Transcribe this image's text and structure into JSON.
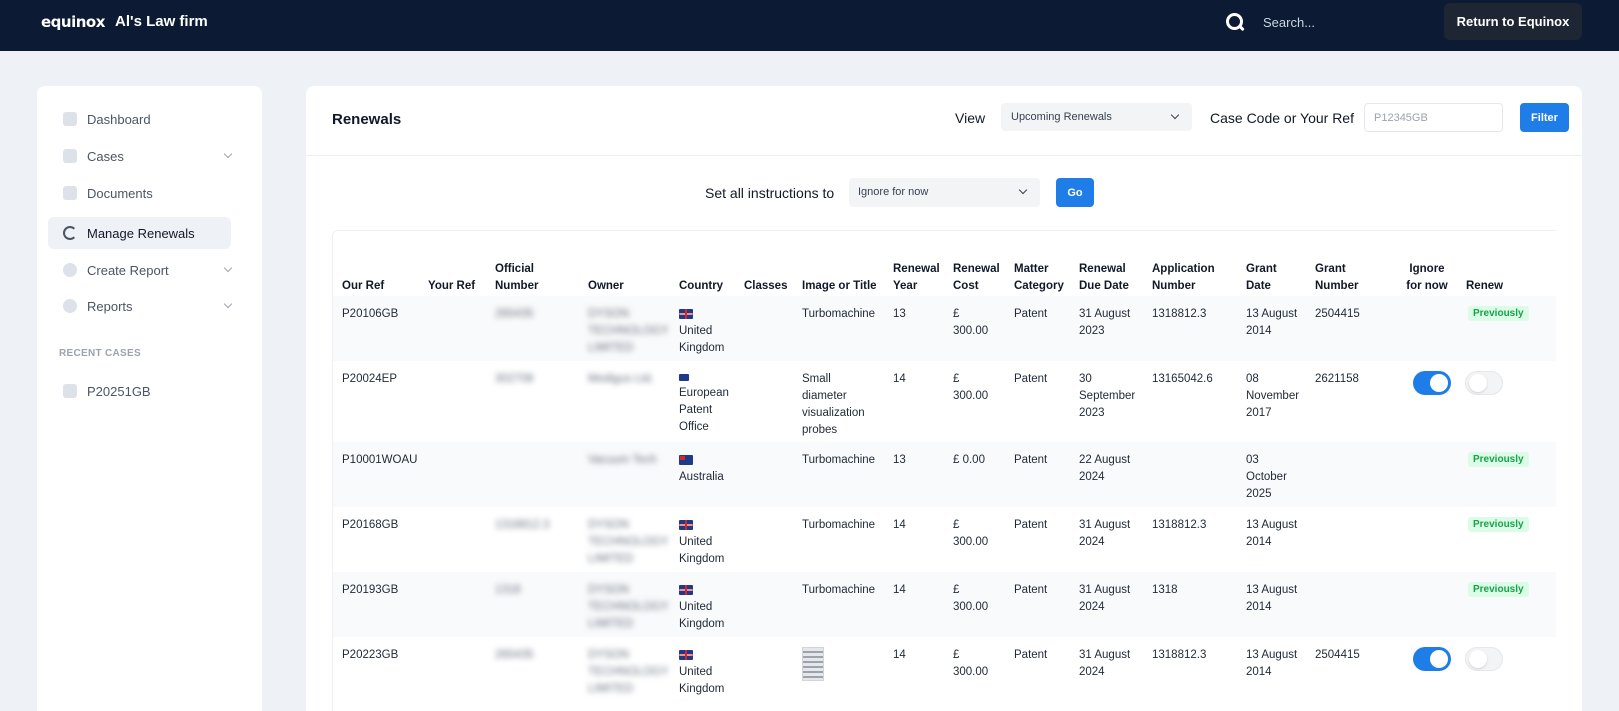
{
  "topbar": {
    "logo": "equinox",
    "firm_name": "Al's Law firm",
    "search_placeholder": "Search...",
    "return_label": "Return to Equinox"
  },
  "sidebar": {
    "items": [
      {
        "label": "Dashboard",
        "icon": "dashboard-icon"
      },
      {
        "label": "Cases",
        "icon": "cases-icon"
      },
      {
        "label": "Documents",
        "icon": "documents-icon"
      },
      {
        "label": "Manage Renewals",
        "icon": "refresh-icon",
        "active": true
      },
      {
        "label": "Create Report",
        "icon": "plus-circle-icon"
      },
      {
        "label": "Reports",
        "icon": "pie-chart-icon"
      }
    ],
    "recent_heading": "RECENT CASES",
    "recent": [
      {
        "label": "P20251GB"
      }
    ]
  },
  "main": {
    "title": "Renewals",
    "view_label": "View",
    "view_value": "Upcoming Renewals",
    "ref_label": "Case Code or Your Ref",
    "ref_placeholder": "P12345GB",
    "filter_label": "Filter",
    "setall_label": "Set all instructions to",
    "setall_value": "Ignore for now",
    "go_label": "Go"
  },
  "table": {
    "headers": {
      "our_ref": "Our Ref",
      "your_ref": "Your Ref",
      "official_1": "Official",
      "official_2": "Number",
      "owner": "Owner",
      "country": "Country",
      "classes": "Classes",
      "image": "Image or Title",
      "renewal_year_1": "Renewal",
      "renewal_year_2": "Year",
      "renewal_cost_1": "Renewal",
      "renewal_cost_2": "Cost",
      "matter_1": "Matter",
      "matter_2": "Category",
      "due_1": "Renewal",
      "due_2": "Due Date",
      "app_1": "Application",
      "app_2": "Number",
      "grant_date_1": "Grant",
      "grant_date_2": "Date",
      "grant_num_1": "Grant",
      "grant_num_2": "Number",
      "ignore_1": "Ignore",
      "ignore_2": "for now",
      "renew": "Renew"
    },
    "rows": [
      {
        "our_ref": "P20106GB",
        "official": [
          "265435"
        ],
        "owner": [
          "DYSON",
          "TECHNOLOGY",
          "LIMITED"
        ],
        "country": [
          "United",
          "Kingdom"
        ],
        "flag": "uk",
        "title": [
          "Turbomachine"
        ],
        "year": "13",
        "cost": [
          "£",
          "300.00"
        ],
        "matter": "Patent",
        "due": [
          "31 August",
          "2023"
        ],
        "app": "1318812.3",
        "grant_date": [
          "13 August",
          "2014"
        ],
        "grant_num": "2504415",
        "status": "Previously"
      },
      {
        "our_ref": "P20024EP",
        "official": [
          "302708"
        ],
        "owner": [
          "Medigus Ltd."
        ],
        "country": [
          "European",
          "Patent",
          "Office"
        ],
        "flag": "eu",
        "title": [
          "Small",
          "diameter",
          "visualization",
          "probes"
        ],
        "year": "14",
        "cost": [
          "£",
          "300.00"
        ],
        "matter": "Patent",
        "due": [
          "30",
          "September",
          "2023"
        ],
        "app": "13165042.6",
        "grant_date": [
          "08",
          "November",
          "2017"
        ],
        "grant_num": "2621158",
        "ignore": true,
        "renew": false
      },
      {
        "our_ref": "P10001WOAU",
        "official": [
          ""
        ],
        "owner": [
          "Vacuum Tech"
        ],
        "country": [
          "Australia"
        ],
        "flag": "au",
        "title": [
          "Turbomachine"
        ],
        "year": "13",
        "cost": [
          "£ 0.00"
        ],
        "matter": "Patent",
        "due": [
          "22 August",
          "2024"
        ],
        "app": "",
        "grant_date": [
          "03",
          "October",
          "2025"
        ],
        "grant_num": "",
        "status": "Previously"
      },
      {
        "our_ref": "P20168GB",
        "official": [
          "1318812.3"
        ],
        "owner": [
          "DYSON",
          "TECHNOLOGY",
          "LIMITED"
        ],
        "country": [
          "United",
          "Kingdom"
        ],
        "flag": "uk",
        "title": [
          "Turbomachine"
        ],
        "year": "14",
        "cost": [
          "£",
          "300.00"
        ],
        "matter": "Patent",
        "due": [
          "31 August",
          "2024"
        ],
        "app": "1318812.3",
        "grant_date": [
          "13 August",
          "2014"
        ],
        "grant_num": "",
        "status": "Previously"
      },
      {
        "our_ref": "P20193GB",
        "official": [
          "1318"
        ],
        "owner": [
          "DYSON",
          "TECHNOLOGY",
          "LIMITED"
        ],
        "country": [
          "United",
          "Kingdom"
        ],
        "flag": "uk",
        "title": [
          "Turbomachine"
        ],
        "year": "14",
        "cost": [
          "£",
          "300.00"
        ],
        "matter": "Patent",
        "due": [
          "31 August",
          "2024"
        ],
        "app": "1318",
        "grant_date": [
          "13 August",
          "2014"
        ],
        "grant_num": "",
        "status": "Previously"
      },
      {
        "our_ref": "P20223GB",
        "official": [
          "265435"
        ],
        "owner": [
          "DYSON",
          "TECHNOLOGY",
          "LIMITED"
        ],
        "country": [
          "United",
          "Kingdom"
        ],
        "flag": "uk",
        "title": [],
        "thumbnail": true,
        "year": "14",
        "cost": [
          "£",
          "300.00"
        ],
        "matter": "Patent",
        "due": [
          "31 August",
          "2024"
        ],
        "app": "1318812.3",
        "grant_date": [
          "13 August",
          "2014"
        ],
        "grant_num": "2504415",
        "ignore": true,
        "renew": false
      }
    ]
  }
}
